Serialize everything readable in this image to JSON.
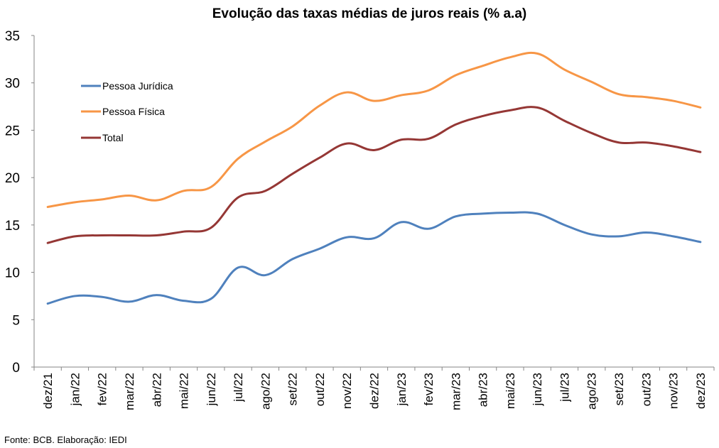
{
  "chart_data": {
    "type": "line",
    "title": "Evolução das taxas médias de juros reais (% a.a)",
    "source": "Fonte: BCB. Elaboração: IEDI",
    "categories": [
      "dez/21",
      "jan/22",
      "fev/22",
      "mar/22",
      "abr/22",
      "mai/22",
      "jun/22",
      "jul/22",
      "ago/22",
      "set/22",
      "out/22",
      "nov/22",
      "dez/22",
      "jan/23",
      "fev/23",
      "mar/23",
      "abr/23",
      "mai/23",
      "jun/23",
      "jul/23",
      "ago/23",
      "set/23",
      "out/23",
      "nov/23",
      "dez/23"
    ],
    "ylim": [
      0,
      35
    ],
    "yticks": [
      0,
      5,
      10,
      15,
      20,
      25,
      30,
      35
    ],
    "grid": false,
    "legend_position": "top-left",
    "series": [
      {
        "name": "Pessoa Jurídica",
        "color": "#4F81BD",
        "values": [
          6.7,
          7.5,
          7.4,
          6.9,
          7.6,
          7.0,
          7.2,
          10.5,
          9.7,
          11.4,
          12.5,
          13.7,
          13.6,
          15.3,
          14.6,
          15.9,
          16.2,
          16.3,
          16.2,
          15.0,
          14.0,
          13.8,
          14.2,
          13.8,
          13.2
        ]
      },
      {
        "name": "Pessoa Física",
        "color": "#F79646",
        "values": [
          16.9,
          17.4,
          17.7,
          18.1,
          17.6,
          18.6,
          19.0,
          22.0,
          23.8,
          25.4,
          27.6,
          29.0,
          28.1,
          28.7,
          29.2,
          30.8,
          31.8,
          32.7,
          33.1,
          31.4,
          30.1,
          28.8,
          28.5,
          28.1,
          27.4
        ]
      },
      {
        "name": "Total",
        "color": "#953735",
        "values": [
          13.1,
          13.8,
          13.9,
          13.9,
          13.9,
          14.3,
          14.7,
          17.9,
          18.6,
          20.4,
          22.1,
          23.6,
          22.9,
          24.0,
          24.1,
          25.6,
          26.5,
          27.1,
          27.4,
          26.0,
          24.7,
          23.7,
          23.7,
          23.3,
          22.7
        ]
      }
    ]
  }
}
